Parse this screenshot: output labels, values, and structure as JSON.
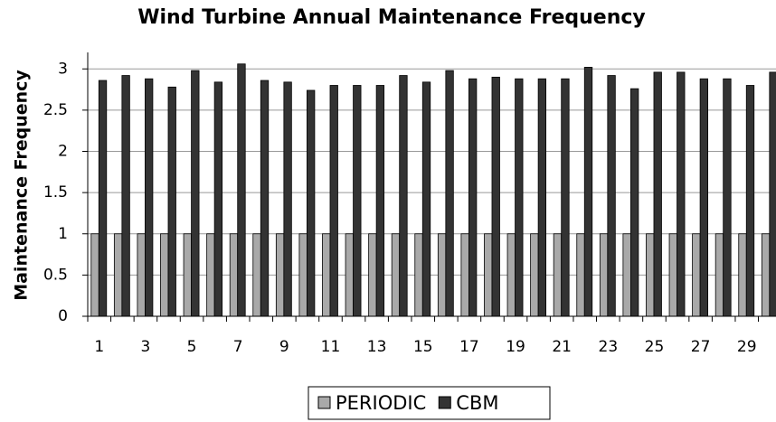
{
  "chart_data": {
    "type": "bar",
    "title": "Wind Turbine Annual Maintenance Frequency",
    "y_label": "Maintenance Frequency",
    "categories": [
      "1",
      null,
      "3",
      null,
      "5",
      null,
      "7",
      null,
      "9",
      null,
      "11",
      null,
      "13",
      null,
      "15",
      null,
      "17",
      null,
      "19",
      null,
      "21",
      null,
      "23",
      null,
      "25",
      null,
      "27",
      null,
      "29",
      null
    ],
    "series": [
      {
        "name": "PERIODIC",
        "color": "#a9a9a9",
        "values": [
          1,
          1,
          1,
          1,
          1,
          1,
          1,
          1,
          1,
          1,
          1,
          1,
          1,
          1,
          1,
          1,
          1,
          1,
          1,
          1,
          1,
          1,
          1,
          1,
          1,
          1,
          1,
          1,
          1,
          1
        ]
      },
      {
        "name": "CBM",
        "color": "#333333",
        "values": [
          2.86,
          2.92,
          2.88,
          2.78,
          2.98,
          2.84,
          3.06,
          2.86,
          2.84,
          2.74,
          2.8,
          2.8,
          2.8,
          2.92,
          2.84,
          2.98,
          2.88,
          2.9,
          2.88,
          2.88,
          2.88,
          3.02,
          2.92,
          2.76,
          2.96,
          2.96,
          2.88,
          2.88,
          2.8,
          2.96
        ]
      }
    ],
    "ylim": [
      0,
      3.2
    ],
    "yticks": [
      0,
      0.5,
      1,
      1.5,
      2,
      2.5,
      3
    ],
    "grid": true,
    "legend": "bottom"
  }
}
